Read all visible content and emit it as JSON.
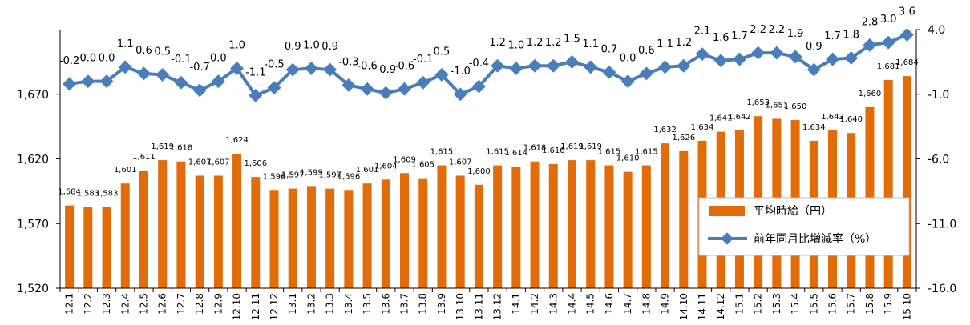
{
  "chart_data": {
    "type": "bar",
    "categories": [
      "12.1",
      "12.2",
      "12.3",
      "12.4",
      "12.5",
      "12.6",
      "12.7",
      "12.8",
      "12.9",
      "12.10",
      "12.11",
      "12.12",
      "13.1",
      "13.2",
      "13.3",
      "13.4",
      "13.5",
      "13.6",
      "13.7",
      "13.8",
      "13.9",
      "13.10",
      "13.11",
      "13.12",
      "14.1",
      "14.2",
      "14.3",
      "14.4",
      "14.5",
      "14.6",
      "14.7",
      "14.8",
      "14.9",
      "14.10",
      "14.11",
      "14.12",
      "15.1",
      "15.2",
      "15.3",
      "15.4",
      "15.5",
      "15.6",
      "15.7",
      "15.8",
      "15.9",
      "15.10"
    ],
    "series": [
      {
        "name": "平均時給（円）",
        "type": "bar",
        "axis": "left",
        "color": "#E36C0A",
        "values": [
          1584,
          1583,
          1583,
          1601,
          1611,
          1619,
          1618,
          1607,
          1607,
          1624,
          1606,
          1596,
          1597,
          1599,
          1597,
          1596,
          1601,
          1604,
          1609,
          1605,
          1615,
          1607,
          1600,
          1615,
          1614,
          1618,
          1616,
          1619,
          1619,
          1615,
          1610,
          1615,
          1632,
          1626,
          1634,
          1641,
          1642,
          1653,
          1651,
          1650,
          1634,
          1642,
          1640,
          1660,
          1681,
          1684
        ]
      },
      {
        "name": "前年同月比増減率（%）",
        "type": "line",
        "axis": "right",
        "color": "#4A7EBB",
        "values": [
          -0.2,
          0.0,
          0.0,
          1.1,
          0.6,
          0.5,
          -0.1,
          -0.7,
          0.0,
          1.0,
          -1.1,
          -0.5,
          0.9,
          1.0,
          0.9,
          -0.3,
          -0.6,
          -0.9,
          -0.6,
          -0.1,
          0.5,
          -1.0,
          -0.4,
          1.2,
          1.0,
          1.2,
          1.2,
          1.5,
          1.1,
          0.7,
          0.0,
          0.6,
          1.1,
          1.2,
          2.1,
          1.6,
          1.7,
          2.2,
          2.2,
          1.9,
          0.9,
          1.7,
          1.8,
          2.8,
          3.0,
          3.6
        ]
      }
    ],
    "bar_labels": [
      "1,584",
      "1,583",
      "1,583",
      "1,601",
      "1,611",
      "1,619",
      "1,618",
      "1,607",
      "1,607",
      "1,624",
      "1,606",
      "1,596",
      "1,597",
      "1,599",
      "1,597",
      "1,596",
      "1,601",
      "1,604",
      "1,609",
      "1,605",
      "1,615",
      "1,607",
      "1,600",
      "1,615",
      "1,614",
      "1,618",
      "1,616",
      "1,619",
      "1,619",
      "1,615",
      "1,610",
      "1,615",
      "1,632",
      "1,626",
      "1,634",
      "1,641",
      "1,642",
      "1,653",
      "1,651",
      "1,650",
      "1,634",
      "1,642",
      "1,640",
      "1,660",
      "1,681",
      "1,684"
    ],
    "line_labels": [
      "-0.2",
      "0.0",
      "0.0",
      "1.1",
      "0.6",
      "0.5",
      "-0.1",
      "-0.7",
      "0.0",
      "1.0",
      "-1.1",
      "-0.5",
      "0.9",
      "1.0",
      "0.9",
      "-0.3",
      "-0.6",
      "-0.9",
      "-0.6",
      "-0.1",
      "0.5",
      "-1.0",
      "-0.4",
      "1.2",
      "1.0",
      "1.2",
      "1.2",
      "1.5",
      "1.1",
      "0.7",
      "0.0",
      "0.6",
      "1.1",
      "1.2",
      "2.1",
      "1.6",
      "1.7",
      "2.2",
      "2.2",
      "1.9",
      "0.9",
      "1.7",
      "1.8",
      "2.8",
      "3.0",
      "3.6"
    ],
    "left_axis": {
      "ylim": [
        1520,
        1720
      ],
      "ticks": [
        "1,520",
        "1,570",
        "1,620",
        "1,670"
      ],
      "tick_values": [
        1520,
        1570,
        1620,
        1670
      ]
    },
    "right_axis": {
      "ylim": [
        -16.0,
        4.0
      ],
      "ticks": [
        "-16.0",
        "-11.0",
        "-6.0",
        "-1.0",
        "4.0"
      ],
      "tick_values": [
        -16,
        -11,
        -6,
        -1,
        4
      ]
    },
    "legend": {
      "placement": "bottom-right",
      "items": [
        {
          "label": "平均時給（円）",
          "symbol": "bar"
        },
        {
          "label": "前年同月比増減率（%）",
          "symbol": "line-diamond"
        }
      ]
    },
    "grid": false
  }
}
